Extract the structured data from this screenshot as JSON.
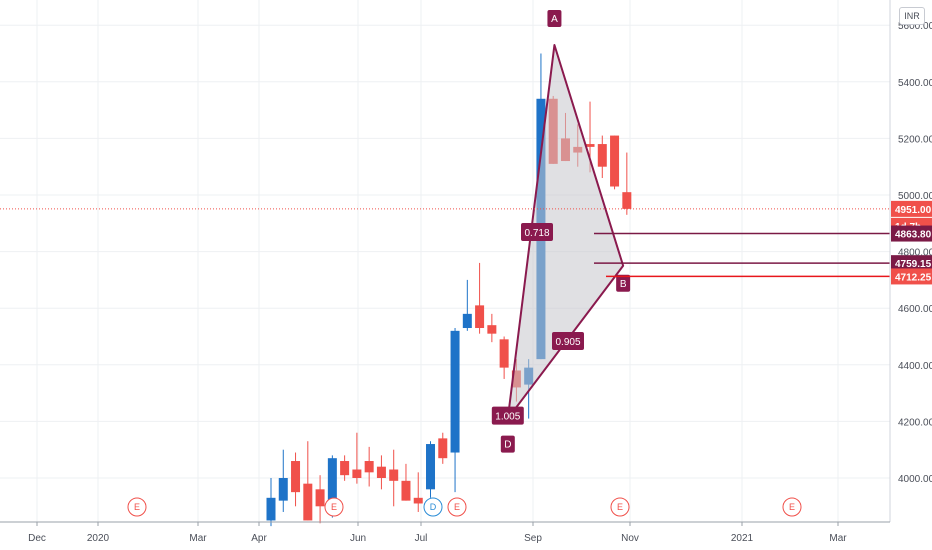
{
  "currency": "INR",
  "colors": {
    "up": "#1e73c8",
    "down": "#f0504a",
    "pattern": "#8a1a4e",
    "pattern_fill": "#c7c7cc",
    "last_price": "#f0504a",
    "level": "#7b1a46",
    "grid": "#eef0f3",
    "axis_text": "#4a4e58"
  },
  "chart_data": {
    "type": "candlestick",
    "y_ticks": [
      "4000.00",
      "4200.00",
      "4400.00",
      "4600.00",
      "4800.00",
      "5000.00",
      "5200.00",
      "5400.00",
      "5600.00"
    ],
    "x_ticks": [
      "Dec",
      "2020",
      "Mar",
      "Apr",
      "Jun",
      "Jul",
      "Sep",
      "Nov",
      "2021",
      "Mar"
    ],
    "ylim": [
      3850,
      5720
    ],
    "grid": true,
    "candles": [
      {
        "o": 3850,
        "h": 4000,
        "l": 3830,
        "c": 3930
      },
      {
        "o": 3920,
        "h": 4100,
        "l": 3880,
        "c": 4000
      },
      {
        "o": 4060,
        "h": 4090,
        "l": 3900,
        "c": 3950
      },
      {
        "o": 3980,
        "h": 4130,
        "l": 3850,
        "c": 3850
      },
      {
        "o": 3960,
        "h": 4010,
        "l": 3840,
        "c": 3900
      },
      {
        "o": 3880,
        "h": 4080,
        "l": 3860,
        "c": 4070
      },
      {
        "o": 4060,
        "h": 4080,
        "l": 3990,
        "c": 4010
      },
      {
        "o": 4030,
        "h": 4160,
        "l": 3980,
        "c": 4000
      },
      {
        "o": 4060,
        "h": 4110,
        "l": 3970,
        "c": 4020
      },
      {
        "o": 4040,
        "h": 4080,
        "l": 3960,
        "c": 4000
      },
      {
        "o": 4030,
        "h": 4100,
        "l": 3900,
        "c": 3990
      },
      {
        "o": 3990,
        "h": 4050,
        "l": 3920,
        "c": 3920
      },
      {
        "o": 3930,
        "h": 4020,
        "l": 3880,
        "c": 3910
      },
      {
        "o": 3960,
        "h": 4130,
        "l": 3930,
        "c": 4120
      },
      {
        "o": 4140,
        "h": 4160,
        "l": 4050,
        "c": 4070
      },
      {
        "o": 4090,
        "h": 4530,
        "l": 3950,
        "c": 4520
      },
      {
        "o": 4530,
        "h": 4700,
        "l": 4520,
        "c": 4580
      },
      {
        "o": 4610,
        "h": 4760,
        "l": 4510,
        "c": 4530
      },
      {
        "o": 4540,
        "h": 4580,
        "l": 4480,
        "c": 4510
      },
      {
        "o": 4490,
        "h": 4500,
        "l": 4350,
        "c": 4390
      },
      {
        "o": 4380,
        "h": 4420,
        "l": 4270,
        "c": 4320
      },
      {
        "o": 4330,
        "h": 4420,
        "l": 4210,
        "c": 4390
      },
      {
        "o": 4420,
        "h": 5500,
        "l": 4420,
        "c": 5340
      },
      {
        "o": 5340,
        "h": 5350,
        "l": 5110,
        "c": 5110
      },
      {
        "o": 5200,
        "h": 5290,
        "l": 5120,
        "c": 5120
      },
      {
        "o": 5170,
        "h": 5250,
        "l": 5100,
        "c": 5150
      },
      {
        "o": 5180,
        "h": 5330,
        "l": 5080,
        "c": 5170
      },
      {
        "o": 5180,
        "h": 5210,
        "l": 5060,
        "c": 5100
      },
      {
        "o": 5210,
        "h": 5210,
        "l": 5020,
        "c": 5030
      },
      {
        "o": 5010,
        "h": 5150,
        "l": 4930,
        "c": 4951
      }
    ],
    "pattern": {
      "points": [
        {
          "name": "D",
          "label": "1.005",
          "value": 4210
        },
        {
          "name": "A",
          "label": "",
          "value": 5530
        },
        {
          "name": "B",
          "label": "",
          "value": 4750
        }
      ],
      "ratio_labels": [
        "0.718",
        "0.905"
      ]
    },
    "price_labels": [
      {
        "value": 4951.0,
        "text": "4951.00",
        "style": "last"
      },
      {
        "value": 4951.0,
        "text": "1d 7h",
        "style": "countdown"
      },
      {
        "value": 4863.8,
        "text": "4863.80",
        "style": "level"
      },
      {
        "value": 4759.15,
        "text": "4759.15",
        "style": "level"
      },
      {
        "value": 4712.25,
        "text": "4712.25",
        "style": "last"
      }
    ],
    "event_markers": [
      {
        "label": "E",
        "style": "earnings"
      },
      {
        "label": "E",
        "style": "earnings"
      },
      {
        "label": "D",
        "style": "dividend"
      },
      {
        "label": "E",
        "style": "earnings"
      },
      {
        "label": "E",
        "style": "earnings"
      },
      {
        "label": "E",
        "style": "earnings"
      }
    ]
  }
}
